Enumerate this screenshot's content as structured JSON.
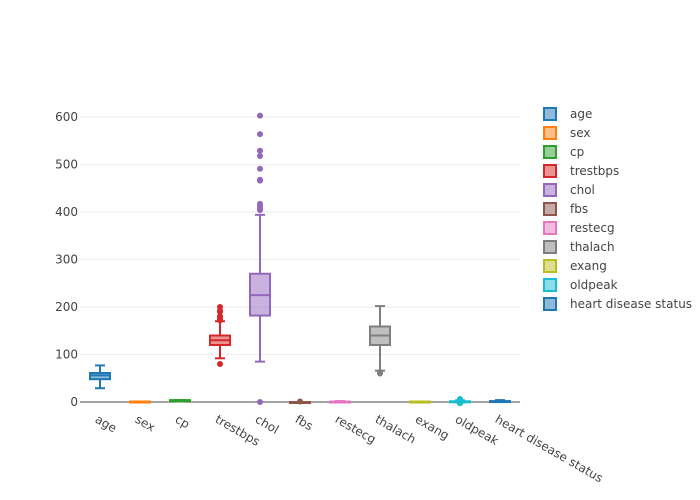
{
  "chart_data": {
    "type": "box",
    "title": "",
    "xlabel": "",
    "ylabel": "",
    "ylim": [
      -20,
      630
    ],
    "yticks": [
      0,
      100,
      200,
      300,
      400,
      500,
      600
    ],
    "grid": true,
    "legend_position": "right",
    "categories": [
      "age",
      "sex",
      "cp",
      "trestbps",
      "chol",
      "fbs",
      "restecg",
      "thalach",
      "exang",
      "oldpeak",
      "heart disease status"
    ],
    "series": [
      {
        "name": "age",
        "color": "#1f77b4",
        "lowerfence": 29,
        "q1": 48,
        "median": 56,
        "q3": 61,
        "upperfence": 77,
        "outliers": []
      },
      {
        "name": "sex",
        "color": "#ff7f0e",
        "lowerfence": 0,
        "q1": 0,
        "median": 1,
        "q3": 1,
        "upperfence": 1,
        "outliers": []
      },
      {
        "name": "cp",
        "color": "#2ca02c",
        "lowerfence": 1,
        "q1": 3,
        "median": 3,
        "q3": 4,
        "upperfence": 4,
        "outliers": []
      },
      {
        "name": "trestbps",
        "color": "#d62728",
        "lowerfence": 92,
        "q1": 120,
        "median": 130,
        "q3": 140,
        "upperfence": 170,
        "outliers": [
          80,
          172,
          174,
          178,
          180,
          180,
          190,
          192,
          200
        ]
      },
      {
        "name": "chol",
        "color": "#9467bd",
        "lowerfence": 85,
        "q1": 182,
        "median": 225,
        "q3": 270,
        "upperfence": 394,
        "outliers": [
          0,
          404,
          407,
          412,
          417,
          466,
          468,
          491,
          518,
          529,
          564,
          603
        ]
      },
      {
        "name": "fbs",
        "color": "#8c564b",
        "lowerfence": 0,
        "q1": 0,
        "median": 0,
        "q3": 0,
        "upperfence": 0,
        "outliers": [
          1
        ]
      },
      {
        "name": "restecg",
        "color": "#e377c2",
        "lowerfence": 0,
        "q1": 0,
        "median": 0,
        "q3": 1,
        "upperfence": 2,
        "outliers": []
      },
      {
        "name": "thalach",
        "color": "#7f7f7f",
        "lowerfence": 66,
        "q1": 120,
        "median": 140,
        "q3": 159,
        "upperfence": 202,
        "outliers": [
          60,
          63
        ]
      },
      {
        "name": "exang",
        "color": "#bcbd22",
        "lowerfence": 0,
        "q1": 0,
        "median": 0,
        "q3": 1,
        "upperfence": 1,
        "outliers": []
      },
      {
        "name": "oldpeak",
        "color": "#17becf",
        "lowerfence": -1,
        "q1": 0,
        "median": 0.5,
        "q3": 1.5,
        "upperfence": 3.7,
        "outliers": [
          -2.6,
          -2,
          4,
          4.2,
          5,
          5.6,
          6.2
        ]
      },
      {
        "name": "heart disease status",
        "color": "#1f77b4",
        "lowerfence": 0,
        "q1": 0,
        "median": 1,
        "q3": 2,
        "upperfence": 4,
        "outliers": []
      }
    ]
  }
}
